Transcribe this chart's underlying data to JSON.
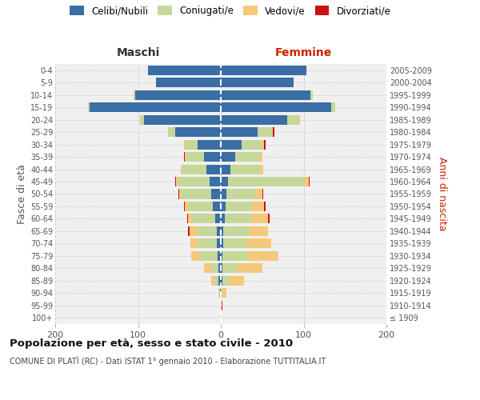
{
  "age_groups": [
    "100+",
    "95-99",
    "90-94",
    "85-89",
    "80-84",
    "75-79",
    "70-74",
    "65-69",
    "60-64",
    "55-59",
    "50-54",
    "45-49",
    "40-44",
    "35-39",
    "30-34",
    "25-29",
    "20-24",
    "15-19",
    "10-14",
    "5-9",
    "0-4"
  ],
  "birth_years": [
    "≤ 1909",
    "1910-1914",
    "1915-1919",
    "1920-1924",
    "1925-1929",
    "1930-1934",
    "1935-1939",
    "1940-1944",
    "1945-1949",
    "1950-1954",
    "1955-1959",
    "1960-1964",
    "1965-1969",
    "1970-1974",
    "1975-1979",
    "1980-1984",
    "1985-1989",
    "1990-1994",
    "1995-1999",
    "2000-2004",
    "2005-2009"
  ],
  "colors": {
    "celibi": "#3a6ea5",
    "coniugati": "#c5d89a",
    "vedovi": "#f5c97a",
    "divorziati": "#cc1111"
  },
  "maschi": {
    "celibi": [
      0,
      0,
      1,
      3,
      3,
      4,
      5,
      5,
      7,
      10,
      12,
      14,
      17,
      20,
      28,
      55,
      93,
      158,
      103,
      78,
      88
    ],
    "coniugati": [
      0,
      0,
      1,
      5,
      9,
      22,
      23,
      24,
      28,
      30,
      36,
      38,
      30,
      22,
      15,
      9,
      5,
      2,
      2,
      0,
      0
    ],
    "vedovi": [
      0,
      0,
      1,
      4,
      8,
      10,
      9,
      9,
      5,
      3,
      2,
      2,
      1,
      1,
      1,
      0,
      0,
      0,
      0,
      0,
      0
    ],
    "divorziati": [
      0,
      0,
      0,
      0,
      0,
      0,
      0,
      2,
      1,
      1,
      1,
      1,
      0,
      1,
      0,
      0,
      0,
      0,
      0,
      0,
      0
    ]
  },
  "femmine": {
    "celibi": [
      0,
      0,
      0,
      2,
      2,
      2,
      3,
      3,
      5,
      6,
      7,
      9,
      12,
      17,
      25,
      44,
      80,
      133,
      108,
      88,
      103
    ],
    "coniugati": [
      0,
      0,
      2,
      8,
      18,
      30,
      28,
      32,
      32,
      32,
      35,
      92,
      35,
      30,
      25,
      18,
      15,
      5,
      3,
      0,
      0
    ],
    "vedovi": [
      0,
      1,
      5,
      18,
      30,
      38,
      30,
      22,
      20,
      14,
      8,
      5,
      4,
      3,
      2,
      1,
      1,
      0,
      0,
      0,
      0
    ],
    "divorziati": [
      0,
      1,
      0,
      0,
      0,
      0,
      0,
      0,
      2,
      2,
      1,
      1,
      0,
      0,
      2,
      2,
      0,
      0,
      0,
      0,
      0
    ]
  },
  "xlim": 200,
  "title": "Popolazione per età, sesso e stato civile - 2010",
  "subtitle": "COMUNE DI PLATÌ (RC) - Dati ISTAT 1° gennaio 2010 - Elaborazione TUTTITALIA.IT",
  "maschi_label": "Maschi",
  "femmine_label": "Femmine",
  "ylabel_left": "Fasce di età",
  "ylabel_right": "Anni di nascita",
  "legend_labels": [
    "Celibi/Nubili",
    "Coniugati/e",
    "Vedovi/e",
    "Divorziati/e"
  ],
  "bg_color": "#ffffff",
  "plot_bg": "#f0f0f0",
  "grid_color": "#cccccc"
}
